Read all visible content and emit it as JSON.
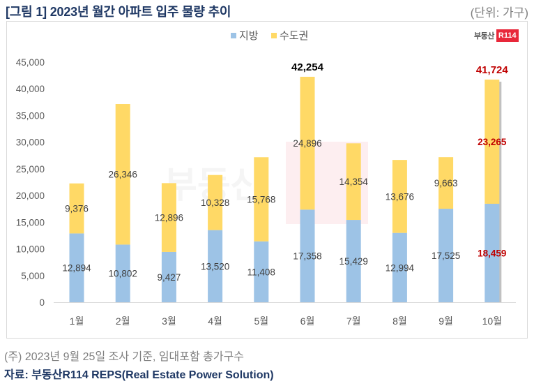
{
  "header": {
    "title": "[그림 1] 2023년 월간 아파트 입주 물량 추이",
    "unit": "(단위: 가구)"
  },
  "logo": {
    "text": "부동산",
    "badge": "R114"
  },
  "footer": {
    "note": "(주) 2023년 9월 25일 조사 기준, 임대포함 총가구수",
    "source": "자료: 부동산R114 REPS(Real Estate Power Solution)"
  },
  "colors": {
    "local": "#9dc3e6",
    "capital": "#ffd966",
    "highlight": "#c00000",
    "axis_text": "#595959",
    "label_text": "#404040"
  },
  "chart_data": {
    "type": "bar",
    "stacked": true,
    "title": "2023년 월간 아파트 입주 물량 추이",
    "xlabel": "",
    "ylabel": "",
    "ylim": [
      0,
      45000
    ],
    "yticks": [
      0,
      5000,
      10000,
      15000,
      20000,
      25000,
      30000,
      35000,
      40000,
      45000
    ],
    "ytick_labels": [
      "0",
      "5,000",
      "10,000",
      "15,000",
      "20,000",
      "25,000",
      "30,000",
      "35,000",
      "40,000",
      "45,000"
    ],
    "grid": false,
    "legend_position": "top-center",
    "categories": [
      "1월",
      "2월",
      "3월",
      "4월",
      "5월",
      "6월",
      "7월",
      "8월",
      "9월",
      "10월"
    ],
    "series": [
      {
        "name": "지방",
        "values": [
          12894,
          10802,
          9427,
          13520,
          11408,
          17358,
          15429,
          12994,
          17525,
          18459
        ],
        "labels": [
          "12,894",
          "10,802",
          "9,427",
          "13,520",
          "11,408",
          "17,358",
          "15,429",
          "12,994",
          "17,525",
          "18,459"
        ]
      },
      {
        "name": "수도권",
        "values": [
          9376,
          26346,
          12896,
          10328,
          15768,
          24896,
          14354,
          13676,
          9663,
          23265
        ],
        "labels": [
          "9,376",
          "26,346",
          "12,896",
          "10,328",
          "15,768",
          "24,896",
          "14,354",
          "13,676",
          "9,663",
          "23,265"
        ]
      }
    ],
    "total_annotations": [
      {
        "category": "6월",
        "value": 42254,
        "label": "42,254",
        "style": "bold-black"
      },
      {
        "category": "10월",
        "value": 41724,
        "label": "41,724",
        "style": "bold-red"
      }
    ],
    "highlight_category": "10월"
  }
}
